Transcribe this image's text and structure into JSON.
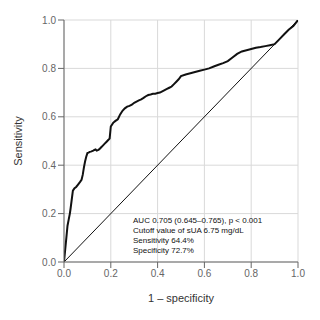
{
  "chart_data": {
    "type": "line",
    "title": "",
    "xlabel": "1 – specificity",
    "ylabel": "Sensitivity",
    "xlim": [
      0,
      1.0
    ],
    "ylim": [
      0,
      1.0
    ],
    "xticks": [
      {
        "value": 0,
        "label": "0.0"
      },
      0.2,
      0.4,
      0.6,
      0.8,
      {
        "value": 1.0,
        "label": "1.0"
      }
    ],
    "yticks": [
      {
        "value": 0,
        "label": "0.0"
      },
      0.2,
      0.4,
      0.6,
      0.8,
      {
        "value": 1.0,
        "label": "1.0"
      }
    ],
    "grid": true,
    "series": [
      {
        "color": "#111111",
        "x": [
          0,
          1
        ],
        "values": [
          0,
          1
        ]
      },
      {
        "color": "#111111",
        "x": [
          0.0,
          0.005,
          0.01,
          0.015,
          0.02,
          0.025,
          0.028,
          0.032,
          0.038,
          0.045,
          0.052,
          0.06,
          0.068,
          0.075,
          0.08,
          0.085,
          0.09,
          0.095,
          0.1,
          0.105,
          0.11,
          0.115,
          0.12,
          0.125,
          0.13,
          0.135,
          0.14,
          0.145,
          0.15,
          0.155,
          0.16,
          0.165,
          0.17,
          0.175,
          0.18,
          0.185,
          0.19,
          0.195,
          0.2,
          0.21,
          0.22,
          0.23,
          0.24,
          0.25,
          0.26,
          0.27,
          0.28,
          0.29,
          0.3,
          0.31,
          0.32,
          0.33,
          0.34,
          0.35,
          0.36,
          0.37,
          0.38,
          0.39,
          0.4,
          0.41,
          0.42,
          0.43,
          0.44,
          0.45,
          0.46,
          0.47,
          0.48,
          0.49,
          0.5,
          0.52,
          0.54,
          0.56,
          0.58,
          0.6,
          0.62,
          0.64,
          0.66,
          0.68,
          0.7,
          0.72,
          0.74,
          0.75,
          0.76,
          0.78,
          0.8,
          0.82,
          0.84,
          0.86,
          0.88,
          0.9,
          0.92,
          0.94,
          0.96,
          0.98,
          1.0
        ],
        "values": [
          0.0,
          0.05,
          0.1,
          0.15,
          0.175,
          0.2,
          0.22,
          0.25,
          0.295,
          0.305,
          0.31,
          0.32,
          0.33,
          0.34,
          0.36,
          0.39,
          0.415,
          0.435,
          0.45,
          0.452,
          0.455,
          0.456,
          0.458,
          0.46,
          0.463,
          0.465,
          0.46,
          0.462,
          0.465,
          0.47,
          0.475,
          0.48,
          0.485,
          0.49,
          0.495,
          0.5,
          0.505,
          0.51,
          0.56,
          0.575,
          0.583,
          0.59,
          0.61,
          0.625,
          0.635,
          0.642,
          0.645,
          0.65,
          0.658,
          0.663,
          0.668,
          0.672,
          0.678,
          0.685,
          0.69,
          0.692,
          0.695,
          0.695,
          0.698,
          0.7,
          0.705,
          0.71,
          0.715,
          0.72,
          0.725,
          0.735,
          0.745,
          0.755,
          0.768,
          0.775,
          0.78,
          0.785,
          0.79,
          0.795,
          0.8,
          0.808,
          0.815,
          0.822,
          0.83,
          0.845,
          0.86,
          0.865,
          0.87,
          0.875,
          0.88,
          0.885,
          0.888,
          0.892,
          0.896,
          0.9,
          0.92,
          0.94,
          0.96,
          0.975,
          1.0
        ]
      }
    ],
    "annotations": [
      {
        "text": "AUC 0.705 (0.645–0.765), p < 0.001\nCutoff value of sUA 6.75 mg/dL\nSensitivity 64.4%\nSpecificity 72.7%",
        "x": 0.295,
        "y": 0.03
      }
    ]
  }
}
